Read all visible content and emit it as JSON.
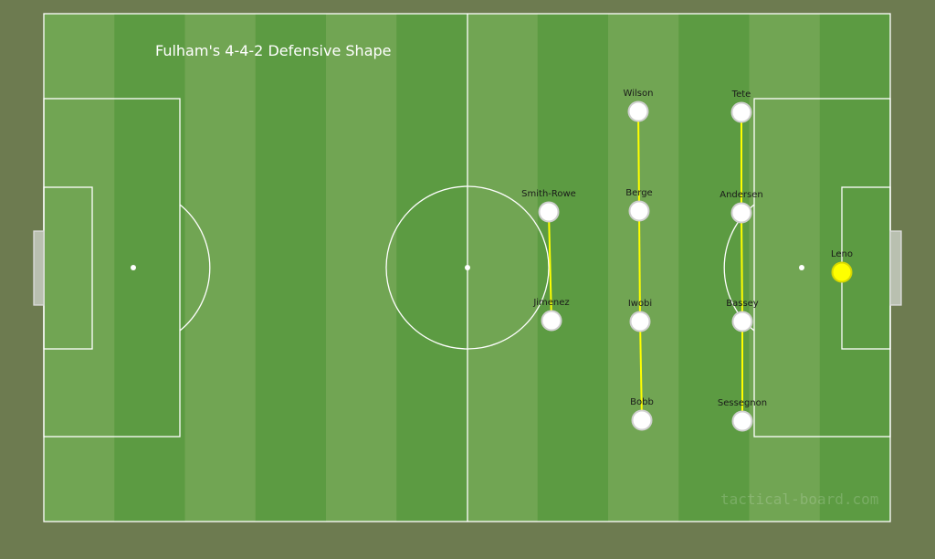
{
  "title": "Fulham's 4-4-2 Defensive Shape",
  "watermark": "tactical-board.com",
  "colors": {
    "background": "#6d7b50",
    "stripe_light": "#71a553",
    "stripe_dark": "#5c9b42",
    "lines": "#ffffff",
    "player": "#ffffff",
    "goalkeeper": "#ffff00",
    "links": "#ffff00"
  },
  "players": [
    {
      "name": "Wilson",
      "role": "outfield"
    },
    {
      "name": "Tete",
      "role": "outfield"
    },
    {
      "name": "Smith-Rowe",
      "role": "outfield"
    },
    {
      "name": "Berge",
      "role": "outfield"
    },
    {
      "name": "Andersen",
      "role": "outfield"
    },
    {
      "name": "Jimenez",
      "role": "outfield"
    },
    {
      "name": "Iwobi",
      "role": "outfield"
    },
    {
      "name": "Bassey",
      "role": "outfield"
    },
    {
      "name": "Bobb",
      "role": "outfield"
    },
    {
      "name": "Sessegnon",
      "role": "outfield"
    },
    {
      "name": "Leno",
      "role": "goalkeeper"
    }
  ],
  "links": [
    [
      "Smith-Rowe",
      "Jimenez"
    ],
    [
      "Wilson",
      "Berge"
    ],
    [
      "Berge",
      "Iwobi"
    ],
    [
      "Iwobi",
      "Bobb"
    ],
    [
      "Tete",
      "Andersen"
    ],
    [
      "Andersen",
      "Bassey"
    ],
    [
      "Bassey",
      "Sessegnon"
    ]
  ]
}
